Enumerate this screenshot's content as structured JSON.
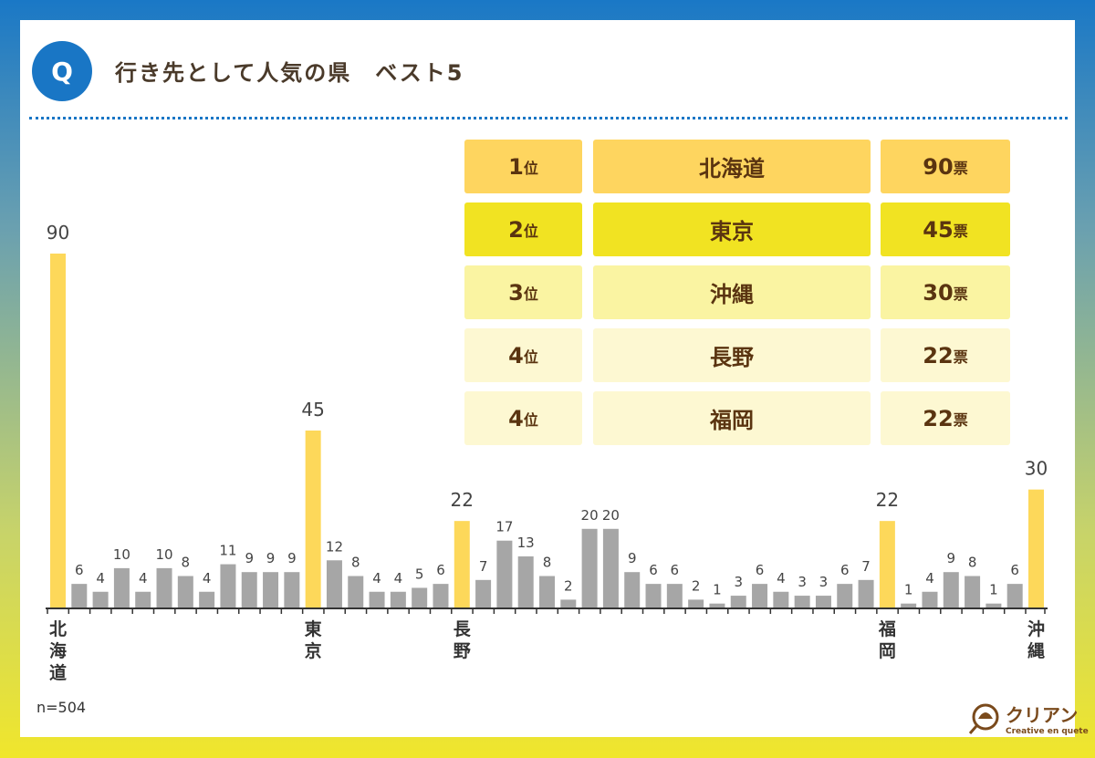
{
  "header": {
    "icon_label": "Q",
    "title": "行き先として人気の県　ベスト5"
  },
  "ranking": [
    {
      "rank": "1",
      "rank_suffix": "位",
      "pref": "北海道",
      "votes": "90",
      "votes_suffix": "票",
      "color": "#fed55f"
    },
    {
      "rank": "2",
      "rank_suffix": "位",
      "pref": "東京",
      "votes": "45",
      "votes_suffix": "票",
      "color": "#f1e322"
    },
    {
      "rank": "3",
      "rank_suffix": "位",
      "pref": "沖縄",
      "votes": "30",
      "votes_suffix": "票",
      "color": "#faf4a2"
    },
    {
      "rank": "4",
      "rank_suffix": "位",
      "pref": "長野",
      "votes": "22",
      "votes_suffix": "票",
      "color": "#fdf8d2"
    },
    {
      "rank": "4",
      "rank_suffix": "位",
      "pref": "福岡",
      "votes": "22",
      "votes_suffix": "票",
      "color": "#fdf8d2"
    }
  ],
  "chart_data": {
    "type": "bar",
    "values": [
      90,
      6,
      4,
      10,
      4,
      10,
      8,
      4,
      11,
      9,
      9,
      9,
      45,
      12,
      8,
      4,
      4,
      5,
      6,
      22,
      7,
      17,
      13,
      8,
      2,
      20,
      20,
      9,
      6,
      6,
      2,
      1,
      3,
      6,
      4,
      3,
      3,
      6,
      7,
      22,
      1,
      4,
      9,
      8,
      1,
      6,
      30
    ],
    "highlight_indices": [
      0,
      12,
      19,
      39,
      46
    ],
    "labeled_categories": {
      "0": "北海道",
      "12": "東京",
      "19": "長野",
      "39": "福岡",
      "46": "沖縄"
    },
    "highlight_color": "#fdd85a",
    "bar_color": "#a6a6a6",
    "ylim": [
      0,
      90
    ]
  },
  "footer": {
    "sample": "n=504",
    "logo_name": "クリアン",
    "logo_tagline": "Creative en quete"
  }
}
